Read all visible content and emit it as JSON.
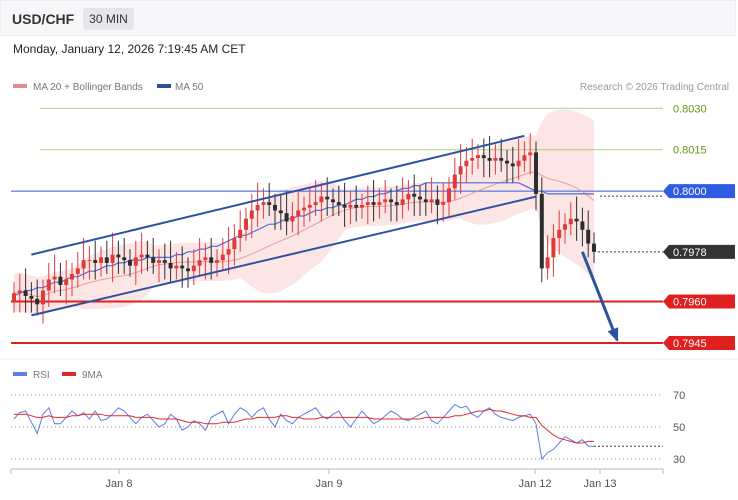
{
  "header": {
    "pair": "USD/CHF",
    "timeframe": "30 MIN",
    "datetime": "Monday, January 12, 2026 7:19:45 AM CET"
  },
  "legend": {
    "ma20_bb": "MA 20 + Bollinger Bands",
    "ma50": "MA 50",
    "credit": "Research © 2026 Trading Central"
  },
  "rsi_legend": {
    "rsi": "RSI",
    "ma9": "9MA"
  },
  "colors": {
    "bull": "#e23a3a",
    "bear": "#2d2d2d",
    "ma20": "#e58a8a",
    "ma50": "#4d6fd6",
    "channel": "#2f52a0",
    "bollinger_fill": "#fbdcdc",
    "resistance": "#8bc34a",
    "pivot": "#2f5ce0",
    "support": "#e01f1f",
    "current": "#333333",
    "rsi": "#5b7fe0",
    "rsi_ma": "#e02a2a"
  },
  "chart_data": [
    {
      "type": "candlestick",
      "title": "USD/CHF",
      "x_tick_labels": [
        "Jan 8",
        "Jan 9",
        "Jan 12",
        "Jan 13"
      ],
      "ylim": [
        0.7941,
        0.8033
      ],
      "levels": [
        {
          "value": 0.803,
          "label": "0.8030",
          "kind": "resistance"
        },
        {
          "value": 0.8015,
          "label": "0.8015",
          "kind": "resistance"
        },
        {
          "value": 0.8,
          "label": "0.8000",
          "kind": "pivot"
        },
        {
          "value": 0.7978,
          "label": "0.7978",
          "kind": "current"
        },
        {
          "value": 0.796,
          "label": "0.7960",
          "kind": "support"
        },
        {
          "value": 0.7945,
          "label": "0.7945",
          "kind": "support"
        }
      ],
      "close_series": [
        0.7963,
        0.7964,
        0.7962,
        0.7961,
        0.7959,
        0.7964,
        0.7968,
        0.7969,
        0.7966,
        0.7968,
        0.797,
        0.7972,
        0.7975,
        0.7975,
        0.7974,
        0.7976,
        0.7974,
        0.7977,
        0.7976,
        0.7975,
        0.7973,
        0.7976,
        0.7977,
        0.7976,
        0.7974,
        0.7975,
        0.7974,
        0.7972,
        0.7973,
        0.7972,
        0.7971,
        0.7973,
        0.7975,
        0.7976,
        0.7974,
        0.7975,
        0.7977,
        0.7979,
        0.7983,
        0.7986,
        0.799,
        0.7993,
        0.7995,
        0.7996,
        0.7995,
        0.7993,
        0.7992,
        0.7989,
        0.7991,
        0.7993,
        0.7994,
        0.7995,
        0.7996,
        0.7998,
        0.7997,
        0.7996,
        0.7995,
        0.7994,
        0.7995,
        0.7994,
        0.7995,
        0.7996,
        0.7995,
        0.7996,
        0.7997,
        0.7996,
        0.7995,
        0.7997,
        0.7999,
        0.7998,
        0.7997,
        0.7996,
        0.7997,
        0.7995,
        0.7996,
        0.8001,
        0.8006,
        0.8009,
        0.8011,
        0.8012,
        0.8013,
        0.8012,
        0.8011,
        0.8012,
        0.8011,
        0.801,
        0.8009,
        0.8011,
        0.8013,
        0.8014,
        0.7999,
        0.7972,
        0.7976,
        0.7983,
        0.7986,
        0.7988,
        0.799,
        0.7989,
        0.7986,
        0.7981,
        0.7978
      ],
      "ma50_series": [
        0.7962,
        0.7963,
        0.7964,
        0.7964,
        0.7965,
        0.7965,
        0.7966,
        0.7967,
        0.7967,
        0.7968,
        0.7969,
        0.7969,
        0.797,
        0.7971,
        0.7971,
        0.7972,
        0.7973,
        0.7973,
        0.7974,
        0.7974,
        0.7975,
        0.7975,
        0.7975,
        0.7976,
        0.7976,
        0.7976,
        0.7976,
        0.7976,
        0.7977,
        0.7977,
        0.7978,
        0.7978,
        0.7979,
        0.7979,
        0.798,
        0.798,
        0.7981,
        0.7982,
        0.7983,
        0.7984,
        0.7984,
        0.7985,
        0.7986,
        0.7987,
        0.7988,
        0.7988,
        0.7989,
        0.799,
        0.799,
        0.7991,
        0.7991,
        0.7992,
        0.7993,
        0.7993,
        0.7994,
        0.7994,
        0.7995,
        0.7995,
        0.7996,
        0.7997,
        0.7997,
        0.7998,
        0.7998,
        0.7999,
        0.7999,
        0.8,
        0.8,
        0.8001,
        0.8001,
        0.8002,
        0.8002,
        0.8003,
        0.8003,
        0.8003,
        0.8003,
        0.8003,
        0.8003,
        0.8003,
        0.8003,
        0.8003,
        0.8003,
        0.8003,
        0.8003,
        0.8003,
        0.8003,
        0.8003,
        0.8003,
        0.8003,
        0.8002,
        0.8001,
        0.8,
        0.8,
        0.7999,
        0.7999,
        0.7999,
        0.7999,
        0.7999,
        0.7999,
        0.7999,
        0.7999,
        0.7999
      ],
      "channel": {
        "upper": [
          [
            3,
            0.7977
          ],
          [
            88,
            0.802
          ]
        ],
        "lower": [
          [
            3,
            0.7955
          ],
          [
            90,
            0.7998
          ]
        ]
      },
      "forecast_arrow": [
        [
          98,
          0.7978
        ],
        [
          104,
          0.7946
        ]
      ]
    },
    {
      "type": "line",
      "title": "RSI",
      "y_tick_labels": [
        "70",
        "50",
        "30"
      ],
      "ylim": [
        25,
        75
      ],
      "rsi_series": [
        55,
        59,
        60,
        53,
        46,
        58,
        62,
        52,
        52,
        56,
        60,
        57,
        59,
        55,
        60,
        54,
        55,
        58,
        62,
        60,
        56,
        52,
        56,
        58,
        54,
        50,
        52,
        58,
        55,
        48,
        50,
        54,
        52,
        48,
        56,
        58,
        60,
        52,
        58,
        62,
        60,
        56,
        60,
        62,
        55,
        50,
        58,
        54,
        52,
        56,
        58,
        60,
        62,
        57,
        55,
        58,
        60,
        54,
        50,
        55,
        60,
        56,
        52,
        54,
        57,
        60,
        58,
        55,
        54,
        56,
        58,
        60,
        54,
        52,
        56,
        60,
        64,
        62,
        63,
        58,
        56,
        60,
        62,
        58,
        56,
        55,
        54,
        56,
        57,
        58,
        52,
        30,
        34,
        36,
        40,
        44,
        42,
        40,
        42,
        38,
        38
      ],
      "rsi_ma_series": [
        58,
        58,
        58,
        57,
        56,
        56,
        57,
        56,
        56,
        56,
        57,
        57,
        58,
        58,
        58,
        58,
        57,
        57,
        57,
        57,
        57,
        56,
        56,
        56,
        56,
        55,
        55,
        55,
        55,
        54,
        53,
        53,
        53,
        52,
        52,
        52,
        53,
        53,
        53,
        54,
        55,
        55,
        56,
        56,
        56,
        56,
        57,
        57,
        56,
        56,
        55,
        55,
        55,
        56,
        56,
        56,
        56,
        56,
        56,
        56,
        56,
        56,
        55,
        55,
        55,
        55,
        55,
        55,
        55,
        55,
        55,
        56,
        56,
        56,
        56,
        56,
        57,
        57,
        58,
        59,
        60,
        60,
        61,
        60,
        60,
        59,
        58,
        57,
        57,
        56,
        56,
        51,
        48,
        45,
        43,
        42,
        41,
        40,
        40,
        41,
        41
      ]
    }
  ]
}
